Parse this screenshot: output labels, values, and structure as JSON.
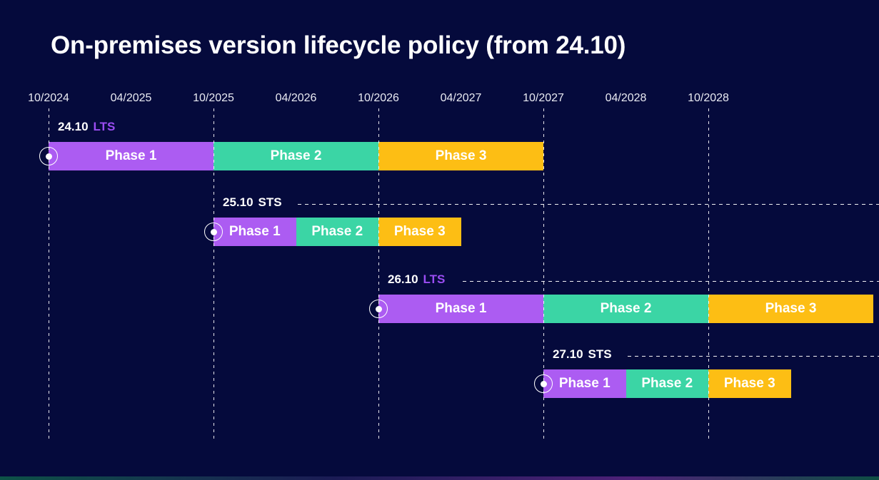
{
  "title": "On-premises version lifecycle policy (from 24.10)",
  "colors": {
    "background": "#050A3C",
    "title_text": "#FFFFFF",
    "axis_text": "#E9EAF2",
    "gridline": "#FFFFFF",
    "bar_text": "#FFFFFF",
    "phase1": "#AC5CF2",
    "phase2": "#3BD5A5",
    "phase3": "#FDBE14",
    "lts_badge": "#9B4DF3",
    "sts_badge": "#FFFFFF",
    "footer_gradient": [
      "#0D5247",
      "#1B1B55",
      "#4E2178",
      "#0E4F44"
    ]
  },
  "chart_data": {
    "type": "gantt",
    "title": "On-premises version lifecycle policy (from 24.10)",
    "axis": {
      "tick_labels": [
        "10/2024",
        "04/2025",
        "10/2025",
        "04/2026",
        "10/2026",
        "04/2027",
        "10/2027",
        "04/2028",
        "10/2028"
      ],
      "gridlines_at": [
        "10/2024",
        "10/2025",
        "10/2026",
        "10/2027",
        "10/2028"
      ],
      "range_start": "10/2024",
      "range_end": "10/2029",
      "tick_interval_months": 6
    },
    "rows": [
      {
        "version": "24.10",
        "channel": "LTS",
        "trailing_dashed_line": false,
        "phases": [
          {
            "label": "Phase 1",
            "start": "10/2024",
            "end": "10/2025"
          },
          {
            "label": "Phase 2",
            "start": "10/2025",
            "end": "10/2026"
          },
          {
            "label": "Phase 3",
            "start": "10/2026",
            "end": "10/2027"
          }
        ]
      },
      {
        "version": "25.10",
        "channel": "STS",
        "trailing_dashed_line": true,
        "phases": [
          {
            "label": "Phase 1",
            "start": "10/2025",
            "end": "04/2026"
          },
          {
            "label": "Phase 2",
            "start": "04/2026",
            "end": "10/2026"
          },
          {
            "label": "Phase 3",
            "start": "10/2026",
            "end": "04/2027"
          }
        ]
      },
      {
        "version": "26.10",
        "channel": "LTS",
        "trailing_dashed_line": true,
        "phases": [
          {
            "label": "Phase 1",
            "start": "10/2026",
            "end": "10/2027"
          },
          {
            "label": "Phase 2",
            "start": "10/2027",
            "end": "10/2028"
          },
          {
            "label": "Phase 3",
            "start": "10/2028",
            "end": "10/2029"
          }
        ]
      },
      {
        "version": "27.10",
        "channel": "STS",
        "trailing_dashed_line": true,
        "phases": [
          {
            "label": "Phase 1",
            "start": "10/2027",
            "end": "04/2028"
          },
          {
            "label": "Phase 2",
            "start": "04/2028",
            "end": "10/2028"
          },
          {
            "label": "Phase 3",
            "start": "10/2028",
            "end": "04/2029"
          }
        ]
      }
    ]
  }
}
